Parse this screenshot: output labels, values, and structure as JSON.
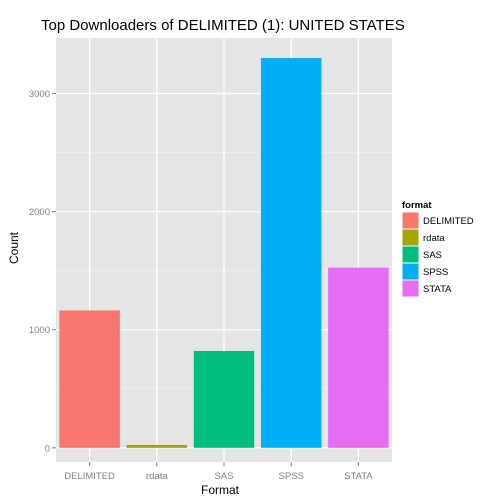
{
  "chart_data": {
    "type": "bar",
    "title": "Top Downloaders of DELIMITED (1):  UNITED STATES",
    "xlabel": "Format",
    "ylabel": "Count",
    "categories": [
      "DELIMITED",
      "rdata",
      "SAS",
      "SPSS",
      "STATA"
    ],
    "values": [
      1163,
      24,
      820,
      3300,
      1525
    ],
    "colors": [
      "#F8766D",
      "#A3A500",
      "#00BF7D",
      "#00B0F6",
      "#E76BF3"
    ],
    "ylim": [
      -120,
      3470
    ],
    "yticks": [
      0,
      1000,
      2000,
      3000
    ],
    "ytick_labels": [
      "0",
      "1000",
      "2000",
      "3000"
    ],
    "grid": true,
    "legend": {
      "title": "format",
      "position": "right",
      "entries": [
        "DELIMITED",
        "rdata",
        "SAS",
        "SPSS",
        "STATA"
      ]
    }
  }
}
